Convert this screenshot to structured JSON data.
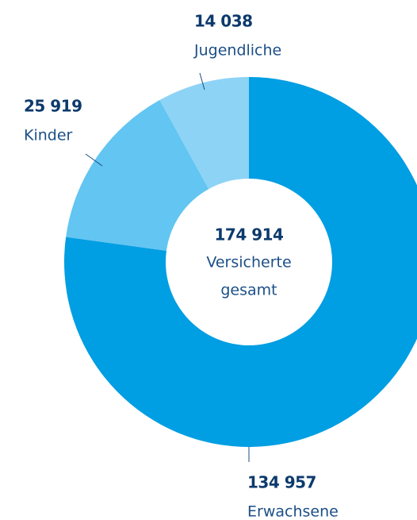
{
  "chart_data": {
    "type": "donut",
    "categories": [
      "Erwachsene",
      "Kinder",
      "Jugendliche"
    ],
    "values": [
      134957,
      25919,
      14038
    ],
    "value_labels": [
      "134 957",
      "25 919",
      "14 038"
    ],
    "colors": [
      "#009ee2",
      "#63c5f1",
      "#8dd3f6"
    ],
    "total": 174914,
    "total_label": "174 914",
    "center_text": [
      "Versicherte",
      "gesamt"
    ]
  }
}
